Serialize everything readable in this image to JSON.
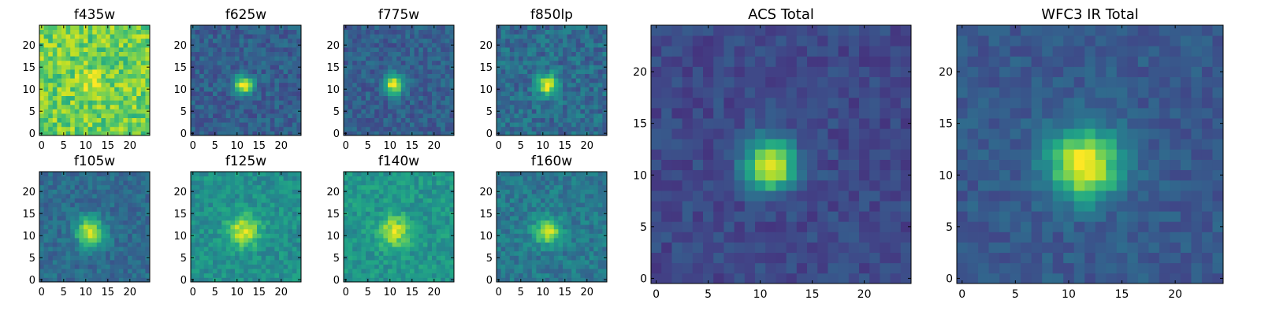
{
  "figure": {
    "description_free": true
  },
  "colormap": {
    "name": "viridis"
  },
  "chart_data": [
    {
      "type": "heatmap",
      "title": "f435w",
      "xlim": [
        -0.5,
        24.5
      ],
      "ylim": [
        -0.5,
        24.5
      ],
      "xticks": [
        0,
        5,
        10,
        15,
        20
      ],
      "yticks": [
        0,
        5,
        10,
        15,
        20
      ],
      "xtick_labels": [
        "0",
        "5",
        "10",
        "15",
        "20"
      ],
      "ytick_labels": [
        "0",
        "5",
        "10",
        "15",
        "20"
      ],
      "grid_size": [
        25,
        25
      ],
      "source": {
        "center": [
          11.5,
          11.5
        ],
        "peak": 0.15,
        "sigma": 2.0,
        "background": 0.78,
        "noise": 0.16,
        "seed": 11
      }
    },
    {
      "type": "heatmap",
      "title": "f625w",
      "xlim": [
        -0.5,
        24.5
      ],
      "ylim": [
        -0.5,
        24.5
      ],
      "xticks": [
        0,
        5,
        10,
        15,
        20
      ],
      "yticks": [
        0,
        5,
        10,
        15,
        20
      ],
      "xtick_labels": [
        "0",
        "5",
        "10",
        "15",
        "20"
      ],
      "ytick_labels": [
        "0",
        "5",
        "10",
        "15",
        "20"
      ],
      "grid_size": [
        25,
        25
      ],
      "source": {
        "center": [
          11.5,
          11.0
        ],
        "peak": 0.72,
        "sigma": 1.4,
        "background": 0.3,
        "noise": 0.1,
        "seed": 22
      }
    },
    {
      "type": "heatmap",
      "title": "f775w",
      "xlim": [
        -0.5,
        24.5
      ],
      "ylim": [
        -0.5,
        24.5
      ],
      "xticks": [
        0,
        5,
        10,
        15,
        20
      ],
      "yticks": [
        0,
        5,
        10,
        15,
        20
      ],
      "xtick_labels": [
        "0",
        "5",
        "10",
        "15",
        "20"
      ],
      "ytick_labels": [
        "0",
        "5",
        "10",
        "15",
        "20"
      ],
      "grid_size": [
        25,
        25
      ],
      "source": {
        "center": [
          11.0,
          11.0
        ],
        "peak": 0.72,
        "sigma": 1.5,
        "background": 0.3,
        "noise": 0.1,
        "seed": 33
      }
    },
    {
      "type": "heatmap",
      "title": "f850lp",
      "xlim": [
        -0.5,
        24.5
      ],
      "ylim": [
        -0.5,
        24.5
      ],
      "xticks": [
        0,
        5,
        10,
        15,
        20
      ],
      "yticks": [
        0,
        5,
        10,
        15,
        20
      ],
      "xtick_labels": [
        "0",
        "5",
        "10",
        "15",
        "20"
      ],
      "ytick_labels": [
        "0",
        "5",
        "10",
        "15",
        "20"
      ],
      "grid_size": [
        25,
        25
      ],
      "source": {
        "center": [
          11.0,
          11.0
        ],
        "peak": 0.65,
        "sigma": 1.6,
        "background": 0.35,
        "noise": 0.12,
        "seed": 44
      }
    },
    {
      "type": "heatmap",
      "title": "f105w",
      "xlim": [
        -0.5,
        24.5
      ],
      "ylim": [
        -0.5,
        24.5
      ],
      "xticks": [
        0,
        5,
        10,
        15,
        20
      ],
      "yticks": [
        0,
        5,
        10,
        15,
        20
      ],
      "xtick_labels": [
        "0",
        "5",
        "10",
        "15",
        "20"
      ],
      "ytick_labels": [
        "0",
        "5",
        "10",
        "15",
        "20"
      ],
      "grid_size": [
        25,
        25
      ],
      "source": {
        "center": [
          11.0,
          11.0
        ],
        "peak": 0.6,
        "sigma": 2.2,
        "background": 0.35,
        "noise": 0.09,
        "seed": 55
      }
    },
    {
      "type": "heatmap",
      "title": "f125w",
      "xlim": [
        -0.5,
        24.5
      ],
      "ylim": [
        -0.5,
        24.5
      ],
      "xticks": [
        0,
        5,
        10,
        15,
        20
      ],
      "yticks": [
        0,
        5,
        10,
        15,
        20
      ],
      "xtick_labels": [
        "0",
        "5",
        "10",
        "15",
        "20"
      ],
      "ytick_labels": [
        "0",
        "5",
        "10",
        "15",
        "20"
      ],
      "grid_size": [
        25,
        25
      ],
      "source": {
        "center": [
          11.5,
          11.0
        ],
        "peak": 0.45,
        "sigma": 2.4,
        "background": 0.5,
        "noise": 0.1,
        "seed": 66
      }
    },
    {
      "type": "heatmap",
      "title": "f140w",
      "xlim": [
        -0.5,
        24.5
      ],
      "ylim": [
        -0.5,
        24.5
      ],
      "xticks": [
        0,
        5,
        10,
        15,
        20
      ],
      "yticks": [
        0,
        5,
        10,
        15,
        20
      ],
      "xtick_labels": [
        "0",
        "5",
        "10",
        "15",
        "20"
      ],
      "ytick_labels": [
        "0",
        "5",
        "10",
        "15",
        "20"
      ],
      "grid_size": [
        25,
        25
      ],
      "source": {
        "center": [
          11.0,
          11.0
        ],
        "peak": 0.42,
        "sigma": 2.3,
        "background": 0.52,
        "noise": 0.1,
        "seed": 77
      }
    },
    {
      "type": "heatmap",
      "title": "f160w",
      "xlim": [
        -0.5,
        24.5
      ],
      "ylim": [
        -0.5,
        24.5
      ],
      "xticks": [
        0,
        5,
        10,
        15,
        20
      ],
      "yticks": [
        0,
        5,
        10,
        15,
        20
      ],
      "xtick_labels": [
        "0",
        "5",
        "10",
        "15",
        "20"
      ],
      "ytick_labels": [
        "0",
        "5",
        "10",
        "15",
        "20"
      ],
      "grid_size": [
        25,
        25
      ],
      "source": {
        "center": [
          11.0,
          11.0
        ],
        "peak": 0.55,
        "sigma": 2.0,
        "background": 0.4,
        "noise": 0.1,
        "seed": 88
      }
    },
    {
      "type": "heatmap",
      "title": "ACS Total",
      "xlim": [
        -0.5,
        24.5
      ],
      "ylim": [
        -0.5,
        24.5
      ],
      "xticks": [
        0,
        5,
        10,
        15,
        20
      ],
      "yticks": [
        0,
        5,
        10,
        15,
        20
      ],
      "xtick_labels": [
        "0",
        "5",
        "10",
        "15",
        "20"
      ],
      "ytick_labels": [
        "0",
        "5",
        "10",
        "15",
        "20"
      ],
      "grid_size": [
        25,
        25
      ],
      "source": {
        "center": [
          11.0,
          11.0
        ],
        "peak": 0.8,
        "sigma": 1.7,
        "background": 0.22,
        "noise": 0.07,
        "seed": 99
      }
    },
    {
      "type": "heatmap",
      "title": "WFC3 IR Total",
      "xlim": [
        -0.5,
        24.5
      ],
      "ylim": [
        -0.5,
        24.5
      ],
      "xticks": [
        0,
        5,
        10,
        15,
        20
      ],
      "yticks": [
        0,
        5,
        10,
        15,
        20
      ],
      "xtick_labels": [
        "0",
        "5",
        "10",
        "15",
        "20"
      ],
      "ytick_labels": [
        "0",
        "5",
        "10",
        "15",
        "20"
      ],
      "grid_size": [
        25,
        25
      ],
      "source": {
        "center": [
          11.5,
          11.0
        ],
        "peak": 0.75,
        "sigma": 2.3,
        "background": 0.28,
        "noise": 0.07,
        "seed": 111
      }
    }
  ]
}
